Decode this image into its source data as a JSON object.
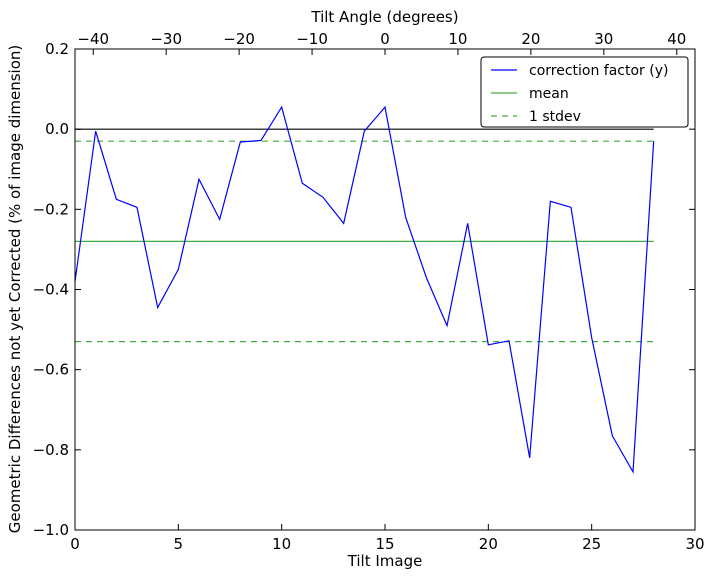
{
  "chart_data": {
    "type": "line",
    "xlabel": "Tilt Image",
    "ylabel": "Geometric Differences not yet Corrected (% of image dimension)",
    "top_xlabel": "Tilt Angle (degrees)",
    "xlim": [
      0,
      30
    ],
    "ylim": [
      -1.0,
      0.2
    ],
    "top_xlim": [
      -42.5,
      42.5
    ],
    "x_ticks": [
      0,
      5,
      10,
      15,
      20,
      25,
      30
    ],
    "x_tick_labels": [
      "0",
      "5",
      "10",
      "15",
      "20",
      "25",
      "30"
    ],
    "y_ticks": [
      0.2,
      0.0,
      -0.2,
      -0.4,
      -0.6,
      -0.8,
      -1.0
    ],
    "y_tick_labels": [
      "0.2",
      "0.0",
      "−0.2",
      "−0.4",
      "−0.6",
      "−0.8",
      "−1.0"
    ],
    "top_ticks": [
      -40,
      -30,
      -20,
      -10,
      0,
      10,
      20,
      30,
      40
    ],
    "top_tick_labels": [
      "−40",
      "−30",
      "−20",
      "−10",
      "0",
      "10",
      "20",
      "30",
      "40"
    ],
    "legend_position": "upper-right",
    "grid": false,
    "reference_lines": [
      {
        "name": "zero",
        "y": 0.0,
        "x": [
          0,
          28
        ],
        "color": "#000000",
        "style": "solid"
      }
    ],
    "series": [
      {
        "name": "correction factor (y)",
        "color": "#0000ff",
        "style": "solid",
        "x": [
          0,
          1,
          2,
          3,
          4,
          5,
          6,
          7,
          8,
          9,
          10,
          11,
          12,
          13,
          14,
          15,
          16,
          17,
          18,
          19,
          20,
          21,
          22,
          23,
          24,
          25,
          26,
          27,
          28
        ],
        "y": [
          -0.38,
          -0.005,
          -0.175,
          -0.195,
          -0.445,
          -0.35,
          -0.125,
          -0.225,
          -0.032,
          -0.028,
          0.055,
          -0.135,
          -0.17,
          -0.235,
          -0.005,
          0.055,
          -0.22,
          -0.37,
          -0.49,
          -0.235,
          -0.538,
          -0.528,
          -0.82,
          -0.18,
          -0.195,
          -0.52,
          -0.765,
          -0.855,
          -0.03
        ]
      },
      {
        "name": "mean",
        "color": "#44aa44",
        "style": "solid",
        "x": [
          0,
          28
        ],
        "y": [
          -0.28,
          -0.28
        ]
      },
      {
        "name": "1 stdev",
        "color": "#44aa44",
        "style": "dashed",
        "x": [
          0,
          28
        ],
        "y": [
          -0.03,
          -0.03
        ]
      },
      {
        "name": "",
        "color": "#44aa44",
        "style": "dashed",
        "x": [
          0,
          28
        ],
        "y": [
          -0.53,
          -0.53
        ]
      }
    ]
  }
}
